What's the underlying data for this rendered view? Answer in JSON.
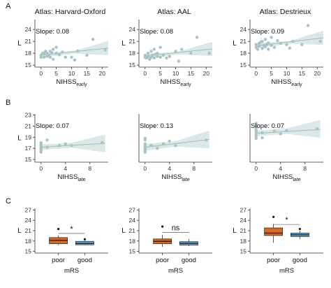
{
  "panel_labels": [
    "A",
    "B",
    "C"
  ],
  "titles": [
    "Atlas: Harvard-Oxford",
    "Atlas: AAL",
    "Atlas: Destrieux"
  ],
  "colors": {
    "points": "#a9c4c4",
    "ribbon": "#d5e4e4",
    "fit": "#9fbcbc",
    "poor_box": "#d86a1e",
    "good_box": "#5aaee0",
    "axis": "#333333"
  },
  "chart_data": [
    {
      "id": "A1",
      "type": "scatter",
      "title": "Atlas: Harvard-Oxford",
      "xlabel": "NIHSS",
      "xlabel_sub": "early",
      "ylabel": "L",
      "annotation": "Slope: 0.08",
      "xlim": [
        -2,
        22
      ],
      "ylim": [
        14.5,
        26.5
      ],
      "xticks": [
        0,
        5,
        10,
        15,
        20
      ],
      "yticks": [
        15,
        18,
        21,
        24
      ],
      "points": [
        [
          0,
          17
        ],
        [
          0,
          17.5
        ],
        [
          0.5,
          18
        ],
        [
          1,
          17
        ],
        [
          1,
          18
        ],
        [
          1.5,
          18.5
        ],
        [
          2,
          17.2
        ],
        [
          2,
          18
        ],
        [
          2.5,
          17.6
        ],
        [
          3,
          18.5
        ],
        [
          3,
          17
        ],
        [
          3.5,
          18.2
        ],
        [
          4,
          16.5
        ],
        [
          4,
          19
        ],
        [
          5,
          18
        ],
        [
          5,
          19.5
        ],
        [
          6,
          17.6
        ],
        [
          7,
          18.3
        ],
        [
          8,
          17
        ],
        [
          10,
          17
        ],
        [
          11,
          16.3
        ],
        [
          12,
          18.6
        ],
        [
          15,
          17.5
        ],
        [
          17,
          21.5
        ],
        [
          21,
          18.8
        ]
      ],
      "fit_line": [
        [
          0,
          17.5
        ],
        [
          22,
          19.3
        ]
      ],
      "ribbon_low": [
        [
          0,
          16.9
        ],
        [
          11,
          17.9
        ],
        [
          22,
          17.5
        ]
      ],
      "ribbon_high": [
        [
          0,
          18.1
        ],
        [
          11,
          18.6
        ],
        [
          22,
          21.1
        ]
      ]
    },
    {
      "id": "A2",
      "type": "scatter",
      "title": "Atlas: AAL",
      "xlabel": "NIHSS",
      "xlabel_sub": "early",
      "ylabel": "L",
      "annotation": "Slope: 0.08",
      "xlim": [
        -2,
        22
      ],
      "ylim": [
        14.5,
        26.5
      ],
      "xticks": [
        0,
        5,
        10,
        15,
        20
      ],
      "yticks": [
        15,
        18,
        21,
        24
      ],
      "points": [
        [
          0,
          17
        ],
        [
          0,
          17.5
        ],
        [
          0.5,
          16.8
        ],
        [
          1,
          17.2
        ],
        [
          1,
          18
        ],
        [
          1.5,
          16.5
        ],
        [
          2,
          17
        ],
        [
          2,
          18.5
        ],
        [
          2.5,
          17.5
        ],
        [
          3,
          19
        ],
        [
          3,
          16.8
        ],
        [
          3.5,
          17.8
        ],
        [
          4,
          17.2
        ],
        [
          4,
          18
        ],
        [
          5,
          17
        ],
        [
          5,
          19.5
        ],
        [
          6,
          17.5
        ],
        [
          7,
          16.8
        ],
        [
          8,
          17.2
        ],
        [
          10,
          18.5
        ],
        [
          11,
          16
        ],
        [
          12,
          19
        ],
        [
          15,
          18
        ],
        [
          17,
          22
        ],
        [
          21,
          18
        ]
      ],
      "fit_line": [
        [
          0,
          17.3
        ],
        [
          22,
          19.1
        ]
      ],
      "ribbon_low": [
        [
          0,
          16.7
        ],
        [
          11,
          17.7
        ],
        [
          22,
          17.3
        ]
      ],
      "ribbon_high": [
        [
          0,
          17.9
        ],
        [
          11,
          18.4
        ],
        [
          22,
          20.9
        ]
      ]
    },
    {
      "id": "A3",
      "type": "scatter",
      "title": "Atlas: Destrieux",
      "xlabel": "NIHSS",
      "xlabel_sub": "early",
      "ylabel": "L",
      "annotation": "Slope: 0.09",
      "xlim": [
        -2,
        22
      ],
      "ylim": [
        14.5,
        26.5
      ],
      "xticks": [
        0,
        5,
        10,
        15,
        20
      ],
      "yticks": [
        15,
        18,
        21,
        24
      ],
      "points": [
        [
          0,
          19.5
        ],
        [
          0,
          20.2
        ],
        [
          0.5,
          19
        ],
        [
          1,
          20.5
        ],
        [
          1,
          19.8
        ],
        [
          1.5,
          20.8
        ],
        [
          2,
          19.2
        ],
        [
          2,
          21
        ],
        [
          2.5,
          20
        ],
        [
          3,
          19.6
        ],
        [
          3,
          21.5
        ],
        [
          3.5,
          20.2
        ],
        [
          4,
          19
        ],
        [
          4,
          20.6
        ],
        [
          5,
          20
        ],
        [
          5,
          22
        ],
        [
          6,
          19.5
        ],
        [
          7,
          21.2
        ],
        [
          8,
          20.5
        ],
        [
          10,
          20.2
        ],
        [
          11,
          19.3
        ],
        [
          12,
          21
        ],
        [
          15,
          20.2
        ],
        [
          17,
          25
        ],
        [
          21,
          21
        ]
      ],
      "fit_line": [
        [
          0,
          19.9
        ],
        [
          22,
          21.9
        ]
      ],
      "ribbon_low": [
        [
          0,
          19.3
        ],
        [
          11,
          20.4
        ],
        [
          22,
          20.1
        ]
      ],
      "ribbon_high": [
        [
          0,
          20.5
        ],
        [
          11,
          21.1
        ],
        [
          22,
          23.7
        ]
      ]
    },
    {
      "id": "B1",
      "type": "scatter",
      "title": "",
      "xlabel": "NIHSS",
      "xlabel_sub": "late",
      "ylabel": "L",
      "annotation": "Slope: 0.07",
      "xlim": [
        -1,
        11
      ],
      "ylim": [
        14.5,
        23.2
      ],
      "xticks": [
        0,
        4,
        8
      ],
      "yticks": [
        15,
        17,
        19,
        21,
        23
      ],
      "points": [
        [
          0,
          16.5
        ],
        [
          0,
          17
        ],
        [
          0,
          17.3
        ],
        [
          0,
          17.6
        ],
        [
          0,
          18
        ],
        [
          0,
          16.8
        ],
        [
          0,
          17.8
        ],
        [
          0,
          16.3
        ],
        [
          1,
          17.2
        ],
        [
          1,
          18.5
        ],
        [
          3,
          17.5
        ],
        [
          4,
          17.8
        ],
        [
          5,
          17.5
        ],
        [
          10,
          18
        ]
      ],
      "fit_line": [
        [
          0,
          17.2
        ],
        [
          10.5,
          17.9
        ]
      ],
      "ribbon_low": [
        [
          0,
          16.7
        ],
        [
          5,
          17.1
        ],
        [
          10.5,
          16.3
        ]
      ],
      "ribbon_high": [
        [
          0,
          17.7
        ],
        [
          5,
          18.0
        ],
        [
          10.5,
          19.5
        ]
      ]
    },
    {
      "id": "B2",
      "type": "scatter",
      "title": "",
      "xlabel": "NIHSS",
      "xlabel_sub": "late",
      "ylabel": "",
      "annotation": "Slope: 0.13",
      "xlim": [
        -1,
        11
      ],
      "ylim": [
        14.5,
        23.2
      ],
      "xticks": [
        0,
        4,
        8
      ],
      "yticks": [],
      "points": [
        [
          0,
          16.5
        ],
        [
          0,
          17
        ],
        [
          0,
          17.4
        ],
        [
          0,
          17.8
        ],
        [
          0,
          18.5
        ],
        [
          0,
          16.8
        ],
        [
          0,
          18.8
        ],
        [
          0,
          16.3
        ],
        [
          1,
          17.5
        ],
        [
          2,
          17
        ],
        [
          3,
          17.8
        ],
        [
          4,
          18.3
        ],
        [
          5,
          17.5
        ],
        [
          10,
          18.5
        ]
      ],
      "fit_line": [
        [
          0,
          17.2
        ],
        [
          10.5,
          18.6
        ]
      ],
      "ribbon_low": [
        [
          0,
          16.6
        ],
        [
          5,
          17.3
        ],
        [
          10.5,
          17.0
        ]
      ],
      "ribbon_high": [
        [
          0,
          17.8
        ],
        [
          5,
          18.3
        ],
        [
          10.5,
          20.2
        ]
      ]
    },
    {
      "id": "B3",
      "type": "scatter",
      "title": "",
      "xlabel": "NIHSS",
      "xlabel_sub": "late",
      "ylabel": "",
      "annotation": "Slope: 0.07",
      "xlim": [
        -1,
        11
      ],
      "ylim": [
        14.5,
        23.2
      ],
      "xticks": [
        0,
        4,
        8
      ],
      "yticks": [],
      "points": [
        [
          0,
          19.5
        ],
        [
          0,
          20
        ],
        [
          0,
          20.5
        ],
        [
          0,
          21
        ],
        [
          0,
          21.5
        ],
        [
          0,
          19.2
        ],
        [
          0,
          20.2
        ],
        [
          0,
          18.8
        ],
        [
          1,
          19.8
        ],
        [
          1,
          18.9
        ],
        [
          3,
          20.1
        ],
        [
          4,
          19.6
        ],
        [
          5,
          20.2
        ],
        [
          10,
          20.5
        ]
      ],
      "fit_line": [
        [
          0,
          19.7
        ],
        [
          10.5,
          20.4
        ]
      ],
      "ribbon_low": [
        [
          0,
          19.2
        ],
        [
          5,
          19.6
        ],
        [
          10.5,
          18.9
        ]
      ],
      "ribbon_high": [
        [
          0,
          20.2
        ],
        [
          5,
          20.6
        ],
        [
          10.5,
          22.1
        ]
      ]
    },
    {
      "id": "C1",
      "type": "box",
      "xlabel": "mRS",
      "ylabel": "L",
      "categories": [
        "poor",
        "good"
      ],
      "ylim": [
        14.5,
        27.5
      ],
      "yticks": [
        15,
        18,
        21,
        24,
        27
      ],
      "boxes": [
        {
          "min": 16.8,
          "q1": 17.2,
          "median": 18.2,
          "q3": 19.0,
          "max": 19.6,
          "outliers": [
            21.5
          ]
        },
        {
          "min": 16.8,
          "q1": 16.9,
          "median": 17.3,
          "q3": 17.9,
          "max": 18.1,
          "outliers": [
            18.5
          ]
        }
      ],
      "significance": "*",
      "sig_y": 20.2
    },
    {
      "id": "C2",
      "type": "box",
      "xlabel": "mRS",
      "ylabel": "L",
      "categories": [
        "poor",
        "good"
      ],
      "ylim": [
        14.5,
        27.5
      ],
      "yticks": [
        15,
        18,
        21,
        24,
        27
      ],
      "boxes": [
        {
          "min": 16.3,
          "q1": 17.2,
          "median": 17.9,
          "q3": 18.6,
          "max": 19.8,
          "outliers": [
            22.2
          ]
        },
        {
          "min": 16.5,
          "q1": 16.8,
          "median": 17.3,
          "q3": 17.8,
          "max": 18.6,
          "outliers": []
        }
      ],
      "significance": "ns",
      "sig_y": 20.5
    },
    {
      "id": "C3",
      "type": "box",
      "xlabel": "mRS",
      "ylabel": "L",
      "categories": [
        "poor",
        "good"
      ],
      "ylim": [
        14.5,
        27.5
      ],
      "yticks": [
        15,
        18,
        21,
        24,
        27
      ],
      "boxes": [
        {
          "min": 17.5,
          "q1": 19.6,
          "median": 20.3,
          "q3": 21.8,
          "max": 23.0,
          "outliers": [
            25.0
          ]
        },
        {
          "min": 18.5,
          "q1": 19.3,
          "median": 19.8,
          "q3": 20.3,
          "max": 21.0,
          "outliers": [
            21.5
          ]
        }
      ],
      "significance": "*",
      "sig_y": 22.8
    }
  ]
}
